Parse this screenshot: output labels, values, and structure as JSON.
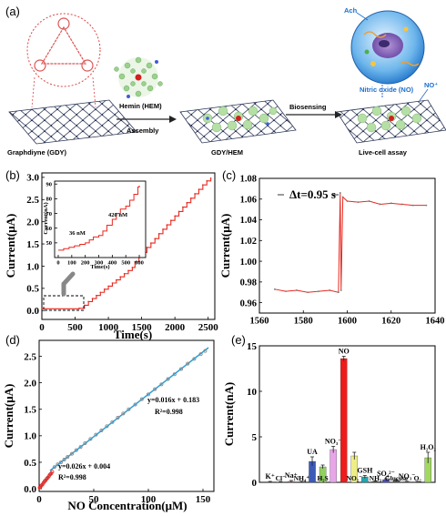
{
  "panels": {
    "a": {
      "label": "(a)",
      "labels": {
        "gdy": "Graphdiyne (GDY)",
        "hemin": "Hemin (HEM)",
        "assembly": "Assembly",
        "gdy_hem": "GDY/HEM",
        "biosensing": "Biosensing",
        "live_cell": "Live-cell assay",
        "ach": "Ach",
        "nitric_oxide": "Nitric oxide (NO)",
        "no_plus": "NO⁺"
      }
    },
    "b": {
      "label": "(b)"
    },
    "c": {
      "label": "(c)"
    },
    "d": {
      "label": "(d)"
    },
    "e": {
      "label": "(e)"
    }
  },
  "chart_data": [
    {
      "id": "b",
      "type": "line",
      "xlabel": "Time(s)",
      "ylabel": "Current(μA)",
      "xlim": [
        0,
        2600
      ],
      "ylim": [
        -0.2,
        3.1
      ],
      "xticks": [
        0,
        500,
        1000,
        1500,
        2000,
        2500
      ],
      "yticks": [
        0.0,
        0.5,
        1.0,
        1.5,
        2.0,
        2.5,
        3.0
      ],
      "color": "#e8281f",
      "series": [
        {
          "x": [
            0,
            560,
            640,
            700,
            760,
            820,
            880,
            940,
            1000,
            1060,
            1120,
            1180,
            1240,
            1300,
            1360,
            1400,
            1460,
            1520,
            1580,
            1640,
            1700,
            1760,
            1820,
            1880,
            1940,
            2000,
            2060,
            2120,
            2180,
            2240,
            2300,
            2360,
            2420,
            2480,
            2540
          ],
          "values": [
            0.04,
            0.05,
            0.12,
            0.2,
            0.27,
            0.34,
            0.41,
            0.48,
            0.55,
            0.62,
            0.69,
            0.76,
            0.83,
            0.9,
            0.97,
            1.1,
            1.2,
            1.31,
            1.42,
            1.52,
            1.62,
            1.73,
            1.83,
            1.93,
            2.03,
            2.13,
            2.23,
            2.33,
            2.43,
            2.53,
            2.63,
            2.73,
            2.83,
            2.92,
            2.98
          ]
        }
      ],
      "inset": {
        "xlabel": "Time(s)",
        "ylabel": "Current(nA)",
        "xlim": [
          0,
          620
        ],
        "ylim": [
          40,
          92
        ],
        "xticks": [
          0,
          100,
          200,
          300,
          400,
          500,
          600
        ],
        "yticks": [
          50,
          60,
          70,
          80,
          90
        ],
        "annotations": [
          "36 nM",
          "420 nM"
        ],
        "x": [
          0,
          40,
          80,
          120,
          160,
          200,
          230,
          260,
          300,
          330,
          360,
          400,
          430,
          460,
          500,
          530,
          560,
          590,
          600
        ],
        "values": [
          45,
          46,
          47,
          48,
          49,
          50,
          52,
          54,
          55,
          58,
          62,
          66,
          70,
          73,
          75,
          79,
          83,
          88,
          89
        ]
      }
    },
    {
      "id": "c",
      "type": "line",
      "xlabel": "",
      "ylabel": "Current(μA)",
      "xlim": [
        1560,
        1640
      ],
      "ylim": [
        0.95,
        1.08
      ],
      "xticks": [
        1560,
        1580,
        1600,
        1620,
        1640
      ],
      "yticks": [
        0.96,
        0.98,
        1.0,
        1.02,
        1.04,
        1.06,
        1.08
      ],
      "annotation": "Δt=0.95 s",
      "color": "#e8281f",
      "series": [
        {
          "x": [
            1567,
            1572,
            1577,
            1582,
            1587,
            1592,
            1596,
            1596.8,
            1597.2,
            1598,
            1600,
            1605,
            1610,
            1615,
            1620,
            1625,
            1630,
            1636
          ],
          "values": [
            0.973,
            0.971,
            0.972,
            0.97,
            0.971,
            0.972,
            0.97,
            1.066,
            0.972,
            1.062,
            1.058,
            1.057,
            1.058,
            1.055,
            1.056,
            1.055,
            1.054,
            1.054
          ]
        }
      ]
    },
    {
      "id": "d",
      "type": "scatter",
      "xlabel": "NO Concentration(μM)",
      "ylabel": "Current(μA)",
      "xlim": [
        0,
        160
      ],
      "ylim": [
        -0.05,
        2.8
      ],
      "xticks": [
        0,
        50,
        100,
        150
      ],
      "yticks": [
        0.0,
        0.5,
        1.0,
        1.5,
        2.0,
        2.5
      ],
      "fit_low": {
        "equation": "y=0.026x + 0.004",
        "r2": "R²=0.998",
        "range": [
          0,
          12
        ],
        "slope": 0.026,
        "intercept": 0.004
      },
      "fit_high": {
        "equation": "y=0.016x + 0.183",
        "r2": "R²=0.998",
        "range": [
          10,
          155
        ],
        "slope": 0.016,
        "intercept": 0.183
      },
      "series": [
        {
          "name": "",
          "x": [
            0.5,
            1,
            2,
            3,
            4,
            5,
            6,
            7,
            8,
            9,
            10,
            11,
            12,
            14,
            17,
            20,
            23,
            26,
            30,
            34,
            38,
            42,
            47,
            52,
            57,
            62,
            67,
            72,
            77,
            82,
            88,
            94,
            100,
            106,
            112,
            118,
            124,
            130,
            136,
            142,
            148,
            152
          ],
          "values": [
            0.02,
            0.03,
            0.06,
            0.08,
            0.11,
            0.14,
            0.16,
            0.19,
            0.21,
            0.24,
            0.27,
            0.29,
            0.32,
            0.41,
            0.46,
            0.5,
            0.55,
            0.6,
            0.66,
            0.73,
            0.79,
            0.86,
            0.94,
            1.02,
            1.1,
            1.18,
            1.26,
            1.34,
            1.42,
            1.5,
            1.59,
            1.69,
            1.78,
            1.88,
            1.97,
            2.07,
            2.16,
            2.26,
            2.36,
            2.45,
            2.54,
            2.6
          ]
        }
      ],
      "colors": {
        "fit": "#2aa0d8",
        "low_points": "#e8281f",
        "high_points": "#888888"
      }
    },
    {
      "id": "e",
      "type": "bar",
      "ylabel": "Current(nA)",
      "ylim": [
        0,
        15
      ],
      "yticks": [
        0,
        5,
        10,
        15
      ],
      "categories": [
        "K⁺",
        "Cl⁻",
        "Na⁺",
        "NH₄⁺",
        "UA",
        "H₂S",
        "NO₃⁻",
        "NO",
        "NO₂⁻",
        "GSH",
        "NH₃",
        "SO₄²⁻",
        "Glucose",
        "NO₃⁻",
        "O₂",
        "H₂O₂"
      ],
      "values": [
        0.05,
        0.04,
        0.1,
        0.06,
        2.3,
        1.7,
        3.6,
        13.6,
        2.9,
        0.6,
        0.1,
        0.3,
        0.2,
        0.06,
        0.05,
        2.7
      ],
      "errors": [
        0.05,
        0.05,
        0.1,
        0.05,
        0.5,
        0.2,
        0.35,
        0.25,
        0.4,
        0.15,
        0.05,
        0.1,
        0.1,
        0.05,
        0.05,
        0.6
      ],
      "bar_colors": [
        "#555555",
        "#555555",
        "#d07070",
        "#555555",
        "#3c5bb8",
        "#90d060",
        "#e8a6e8",
        "#ee1b1b",
        "#eeee88",
        "#20a8b0",
        "#555555",
        "#5050c0",
        "#555555",
        "#555555",
        "#555555",
        "#a0d860"
      ],
      "labels_above": [
        "K⁺",
        "",
        "Na⁺",
        "",
        "UA",
        "",
        "NO₃⁻",
        "NO",
        "",
        "GSH",
        "",
        "SO₄²⁻",
        "",
        "NO₃⁻",
        "",
        "H₂O₂"
      ],
      "labels_below": [
        "",
        "Cl⁻",
        "",
        "NH₄⁺",
        "",
        "H₂S",
        "",
        "",
        "NO₂⁻",
        "",
        "NH₃",
        "",
        "Glucose",
        "",
        "O₂",
        ""
      ]
    }
  ]
}
